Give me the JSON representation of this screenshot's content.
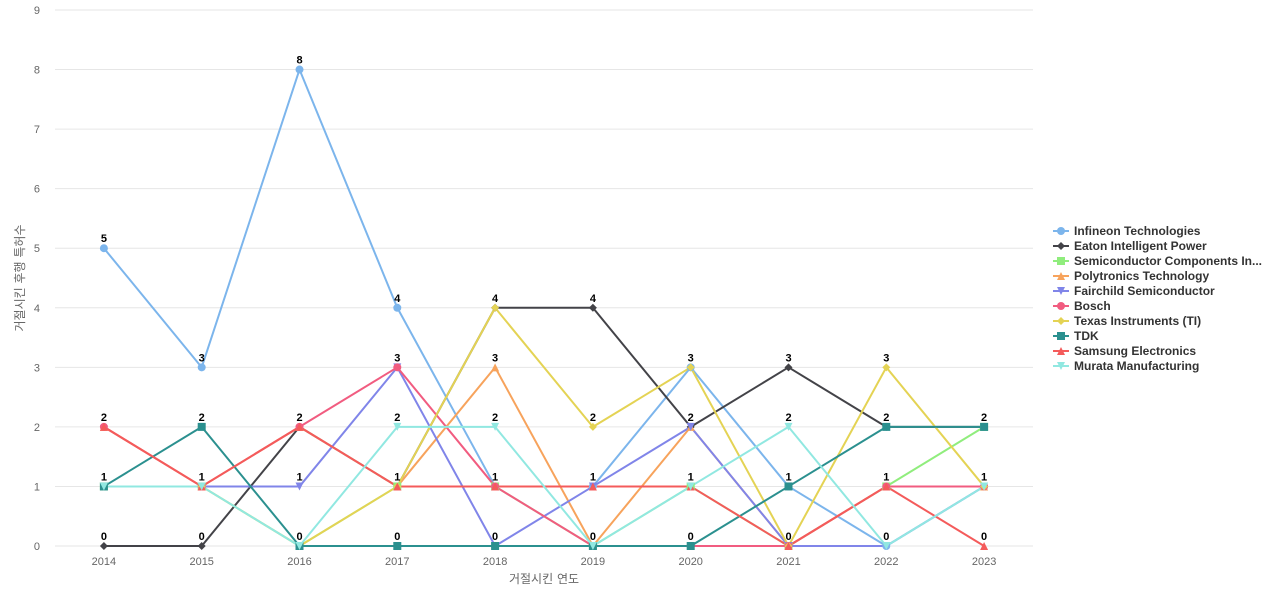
{
  "chart_data": {
    "type": "line",
    "title": "",
    "xlabel": "거절시킨 연도",
    "ylabel": "거절시킨 후행 특허수",
    "ylim": [
      0,
      9
    ],
    "yticks": [
      0,
      1,
      2,
      3,
      4,
      5,
      6,
      7,
      8,
      9
    ],
    "grid": true,
    "legend_position": "right",
    "x": [
      "2014",
      "2015",
      "2016",
      "2017",
      "2018",
      "2019",
      "2020",
      "2021",
      "2022",
      "2023"
    ],
    "series": [
      {
        "name": "Infineon Technologies",
        "color": "#7cb5ec",
        "marker": "circle",
        "values": [
          5,
          3,
          8,
          4,
          1,
          1,
          3,
          1,
          0,
          1
        ]
      },
      {
        "name": "Eaton Intelligent Power",
        "color": "#434348",
        "marker": "diamond",
        "values": [
          0,
          0,
          2,
          1,
          4,
          4,
          2,
          3,
          2,
          2
        ]
      },
      {
        "name": "Semiconductor Components In...",
        "color": "#90ed7d",
        "marker": "square",
        "values": [
          1,
          1,
          0,
          1,
          1,
          0,
          1,
          0,
          1,
          2
        ]
      },
      {
        "name": "Polytronics Technology",
        "color": "#f7a35c",
        "marker": "triangle",
        "values": [
          2,
          1,
          2,
          1,
          3,
          0,
          2,
          0,
          1,
          1
        ]
      },
      {
        "name": "Fairchild Semiconductor",
        "color": "#8085e9",
        "marker": "triangle-down",
        "values": [
          1,
          1,
          1,
          3,
          0,
          1,
          2,
          0,
          0,
          1
        ]
      },
      {
        "name": "Bosch",
        "color": "#f15c80",
        "marker": "circle",
        "values": [
          2,
          1,
          2,
          3,
          1,
          0,
          0,
          0,
          1,
          1
        ]
      },
      {
        "name": "Texas Instruments (TI)",
        "color": "#e4d354",
        "marker": "diamond",
        "values": [
          1,
          1,
          0,
          1,
          4,
          2,
          3,
          0,
          3,
          1
        ]
      },
      {
        "name": "TDK",
        "color": "#2b908f",
        "marker": "square",
        "values": [
          1,
          2,
          0,
          0,
          0,
          0,
          0,
          1,
          2,
          2
        ]
      },
      {
        "name": "Samsung Electronics",
        "color": "#f45b5b",
        "marker": "triangle",
        "values": [
          2,
          1,
          2,
          1,
          1,
          1,
          1,
          0,
          1,
          0
        ]
      },
      {
        "name": "Murata Manufacturing",
        "color": "#91e8e1",
        "marker": "triangle-down",
        "values": [
          1,
          1,
          0,
          2,
          2,
          0,
          1,
          2,
          0,
          1
        ]
      }
    ],
    "data_labels": [
      {
        "x": "2014",
        "label": "5"
      },
      {
        "x": "2014",
        "label": "2"
      },
      {
        "x": "2014",
        "label": "1"
      },
      {
        "x": "2014",
        "label": "0"
      },
      {
        "x": "2015",
        "label": "3"
      },
      {
        "x": "2015",
        "label": "2"
      },
      {
        "x": "2015",
        "label": "1"
      },
      {
        "x": "2015",
        "label": "0"
      },
      {
        "x": "2016",
        "label": "8"
      },
      {
        "x": "2016",
        "label": "2"
      },
      {
        "x": "2016",
        "label": "1"
      },
      {
        "x": "2016",
        "label": "0"
      },
      {
        "x": "2017",
        "label": "4"
      },
      {
        "x": "2017",
        "label": "3"
      },
      {
        "x": "2017",
        "label": "2"
      },
      {
        "x": "2017",
        "label": "1"
      },
      {
        "x": "2017",
        "label": "0"
      },
      {
        "x": "2018",
        "label": "4"
      },
      {
        "x": "2018",
        "label": "3"
      },
      {
        "x": "2018",
        "label": "2"
      },
      {
        "x": "2018",
        "label": "1"
      },
      {
        "x": "2018",
        "label": "0"
      },
      {
        "x": "2019",
        "label": "4"
      },
      {
        "x": "2019",
        "label": "2"
      },
      {
        "x": "2019",
        "label": "1"
      },
      {
        "x": "2019",
        "label": "0"
      },
      {
        "x": "2020",
        "label": "3"
      },
      {
        "x": "2020",
        "label": "2"
      },
      {
        "x": "2020",
        "label": "1"
      },
      {
        "x": "2020",
        "label": "0"
      },
      {
        "x": "2021",
        "label": "3"
      },
      {
        "x": "2021",
        "label": "2"
      },
      {
        "x": "2021",
        "label": "1"
      },
      {
        "x": "2021",
        "label": "0"
      },
      {
        "x": "2022",
        "label": "3"
      },
      {
        "x": "2022",
        "label": "2"
      },
      {
        "x": "2022",
        "label": "1"
      },
      {
        "x": "2022",
        "label": "0"
      },
      {
        "x": "2023",
        "label": "2"
      },
      {
        "x": "2023",
        "label": "1"
      },
      {
        "x": "2023",
        "label": "0"
      }
    ]
  }
}
